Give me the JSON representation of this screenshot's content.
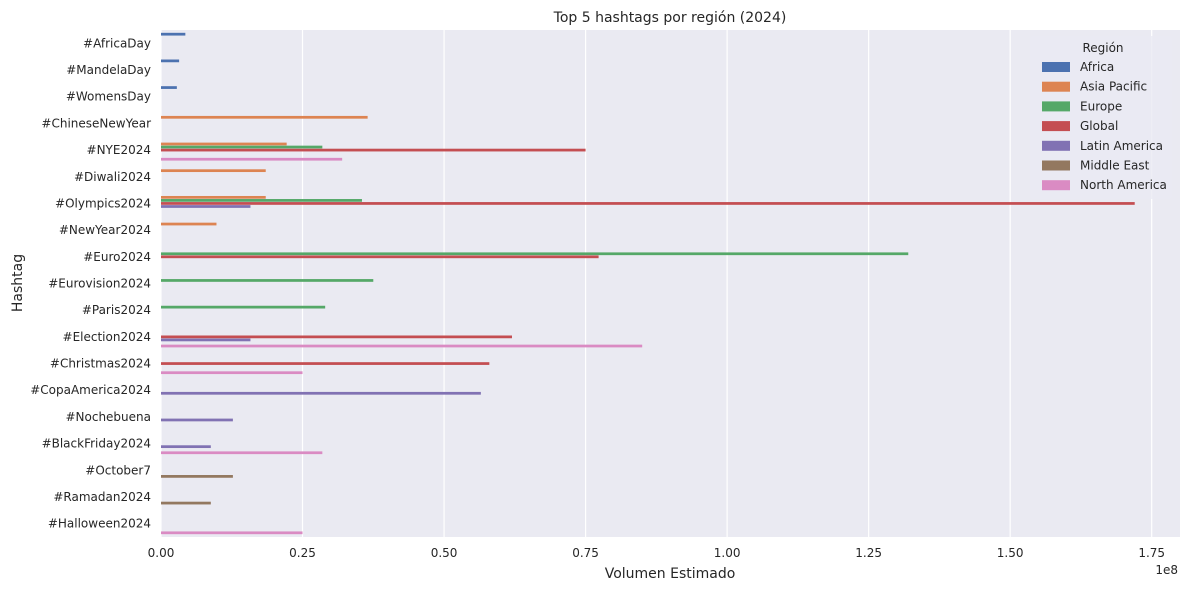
{
  "chart_data": {
    "type": "bar",
    "orientation": "horizontal",
    "title": "Top 5 hashtags por región (2024)",
    "xlabel": "Volumen Estimado",
    "ylabel": "Hashtag",
    "x_scale_label": "1e8",
    "xlim": [
      0,
      1.8
    ],
    "x_ticks": [
      "0.00",
      "0.25",
      "0.50",
      "0.75",
      "1.00",
      "1.25",
      "1.50",
      "1.75"
    ],
    "grid": true,
    "legend_position": "top-right",
    "legend_title": "Región",
    "categories": [
      "#AfricaDay",
      "#MandelaDay",
      "#WomensDay",
      "#ChineseNewYear",
      "#NYE2024",
      "#Diwali2024",
      "#Olympics2024",
      "#NewYear2024",
      "#Euro2024",
      "#Eurovision2024",
      "#Paris2024",
      "#Election2024",
      "#Christmas2024",
      "#CopaAmerica2024",
      "#Nochebuena",
      "#BlackFriday2024",
      "#October7",
      "#Ramadan2024",
      "#Halloween2024"
    ],
    "series": [
      {
        "name": "Africa",
        "color": "#4c72b0",
        "values": [
          0.043,
          0.032,
          0.028,
          null,
          null,
          null,
          null,
          null,
          null,
          null,
          null,
          null,
          null,
          null,
          null,
          null,
          null,
          null,
          null
        ]
      },
      {
        "name": "Asia Pacific",
        "color": "#dd8452",
        "values": [
          null,
          null,
          null,
          0.365,
          0.222,
          0.185,
          0.185,
          0.098,
          null,
          null,
          null,
          null,
          null,
          null,
          null,
          null,
          null,
          null,
          null
        ]
      },
      {
        "name": "Europe",
        "color": "#55a868",
        "values": [
          null,
          null,
          null,
          null,
          0.285,
          null,
          0.355,
          null,
          1.32,
          0.375,
          0.29,
          null,
          null,
          null,
          null,
          null,
          null,
          null,
          null
        ]
      },
      {
        "name": "Global",
        "color": "#c44e52",
        "values": [
          null,
          null,
          null,
          null,
          0.75,
          null,
          1.72,
          null,
          0.773,
          null,
          null,
          0.62,
          0.58,
          null,
          null,
          null,
          null,
          null,
          null
        ]
      },
      {
        "name": "Latin America",
        "color": "#8172b3",
        "values": [
          null,
          null,
          null,
          null,
          null,
          null,
          0.158,
          null,
          null,
          null,
          null,
          0.158,
          null,
          0.565,
          0.127,
          0.088,
          null,
          null,
          null
        ]
      },
      {
        "name": "Middle East",
        "color": "#937860",
        "values": [
          null,
          null,
          null,
          null,
          null,
          null,
          null,
          null,
          null,
          null,
          null,
          null,
          null,
          null,
          null,
          null,
          0.127,
          0.088,
          null
        ]
      },
      {
        "name": "North America",
        "color": "#da8bc3",
        "values": [
          null,
          null,
          null,
          null,
          0.32,
          null,
          null,
          null,
          null,
          null,
          null,
          0.85,
          0.25,
          null,
          null,
          0.285,
          null,
          null,
          0.25
        ]
      }
    ]
  }
}
